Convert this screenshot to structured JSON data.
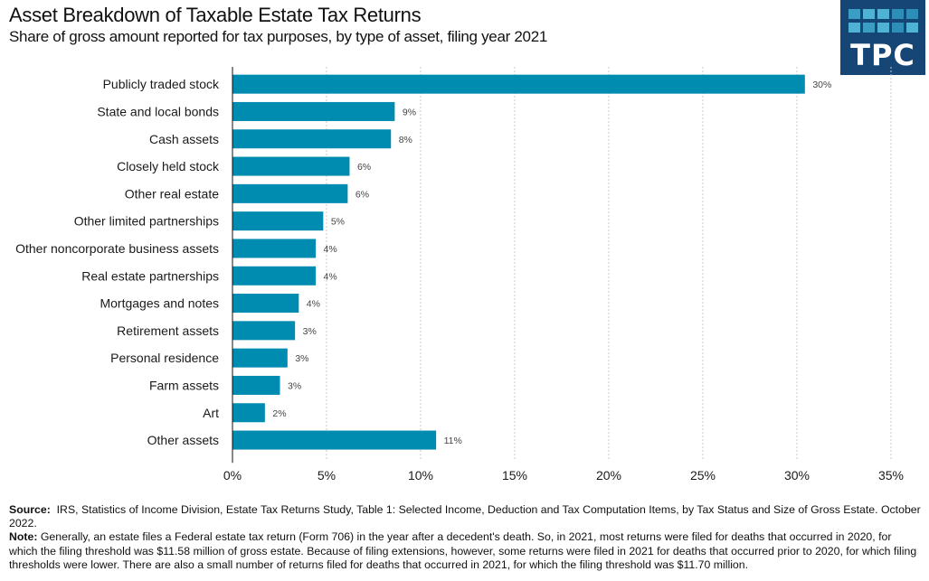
{
  "header": {
    "title": "Asset Breakdown of Taxable Estate Tax Returns",
    "subtitle": "Share of gross amount reported for tax purposes, by type of asset, filing year 2021",
    "logo_text": "TPC",
    "logo_colors": {
      "background": "#164675",
      "squares": [
        "#3a9ec4",
        "#4fb3d6",
        "#4fb3d6",
        "#2d8fb8",
        "#2d8fb8",
        "#4fb3d6",
        "#3a9ec4",
        "#4fb3d6",
        "#2d8fb8",
        "#4fb3d6"
      ]
    }
  },
  "chart_data": {
    "type": "bar",
    "orientation": "horizontal",
    "title": "Asset Breakdown of Taxable Estate Tax Returns",
    "subtitle": "Share of gross amount reported for tax purposes, by type of asset, filing year 2021",
    "xlabel": "",
    "ylabel": "",
    "categories": [
      "Publicly traded stock",
      "State and local bonds",
      "Cash assets",
      "Closely held stock",
      "Other real estate",
      "Other limited partnerships",
      "Other noncorporate business assets",
      "Real estate partnerships",
      "Mortgages and notes",
      "Retirement assets",
      "Personal residence",
      "Farm assets",
      "Art",
      "Other assets"
    ],
    "values": [
      30.4,
      8.6,
      8.4,
      6.2,
      6.1,
      4.8,
      4.4,
      4.4,
      3.5,
      3.3,
      2.9,
      2.5,
      1.7,
      10.8
    ],
    "data_labels": [
      "30%",
      "9%",
      "8%",
      "6%",
      "6%",
      "5%",
      "4%",
      "4%",
      "4%",
      "3%",
      "3%",
      "3%",
      "2%",
      "11%"
    ],
    "xlim": [
      0,
      35
    ],
    "xticks": [
      0,
      5,
      10,
      15,
      20,
      25,
      30,
      35
    ],
    "xtick_labels": [
      "0%",
      "5%",
      "10%",
      "15%",
      "20%",
      "25%",
      "30%",
      "35%"
    ],
    "grid": "vertical dotted",
    "bar_color": "#008bb0",
    "legend": "none"
  },
  "footer": {
    "source_label": "Source:",
    "source_text": "IRS, Statistics of Income Division, Estate Tax Returns Study, Table 1: Selected Income, Deduction and Tax Computation Items, by Tax Status and Size of Gross Estate. October 2022.",
    "note_label": "Note:",
    "note_text": "Generally, an estate files a Federal estate tax return (Form 706) in the year after a decedent's death. So, in 2021, most returns were filed for deaths that occurred in 2020, for which the filing threshold was $11.58 million of gross estate. Because of filing extensions, however, some returns were filed in 2021 for deaths that occurred prior to 2020, for which filing thresholds were lower. There are also a small number of returns filed for deaths that occurred in 2021, for which the filing threshold was $11.70 million."
  }
}
